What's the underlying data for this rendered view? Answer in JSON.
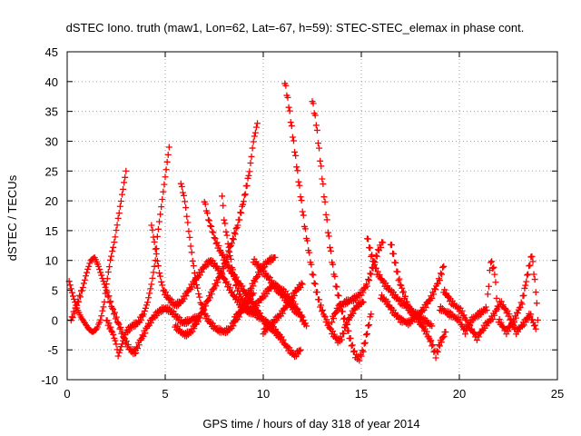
{
  "chart_data": {
    "type": "scatter",
    "title": "dSTEC Iono. truth (maw1, Lon=62, Lat=-67, h=59): STEC-STEC_elemax in phase cont.",
    "xlabel": "GPS time / hours of day 318 of year 2014",
    "ylabel": "dSTEC  / TECUs",
    "xlim": [
      0,
      25
    ],
    "ylim": [
      -10,
      45
    ],
    "xticks": [
      0,
      5,
      10,
      15,
      20,
      25
    ],
    "yticks": [
      -10,
      -5,
      0,
      5,
      10,
      15,
      20,
      25,
      30,
      35,
      40,
      45
    ],
    "grid": true,
    "marker": "plus",
    "color": "#ff0000",
    "series": [
      {
        "points": [
          [
            0.1,
            6.5
          ],
          [
            0.3,
            4.0
          ],
          [
            0.5,
            2.0
          ],
          [
            0.7,
            0.5
          ],
          [
            0.9,
            -0.5
          ],
          [
            1.1,
            -1.5
          ],
          [
            1.3,
            -2.0
          ],
          [
            1.5,
            -1.5
          ],
          [
            1.7,
            0.0
          ],
          [
            1.9,
            3.0
          ],
          [
            2.0,
            6.0
          ],
          [
            2.2,
            10.0
          ],
          [
            2.4,
            13.0
          ],
          [
            2.6,
            17.0
          ],
          [
            2.8,
            21.0
          ],
          [
            3.0,
            25.0
          ]
        ]
      },
      {
        "points": [
          [
            0.2,
            0.0
          ],
          [
            0.5,
            2.5
          ],
          [
            0.8,
            5.5
          ],
          [
            1.0,
            8.0
          ],
          [
            1.2,
            10.0
          ],
          [
            1.4,
            10.5
          ],
          [
            1.6,
            9.0
          ],
          [
            1.8,
            7.0
          ],
          [
            2.0,
            5.0
          ],
          [
            2.3,
            2.0
          ],
          [
            2.6,
            -0.5
          ],
          [
            2.9,
            -3.0
          ],
          [
            3.2,
            -5.0
          ],
          [
            3.5,
            -5.5
          ]
        ]
      },
      {
        "points": [
          [
            2.0,
            0.0
          ],
          [
            2.3,
            -2.0
          ],
          [
            2.5,
            -4.0
          ],
          [
            2.6,
            -6.0
          ],
          [
            2.8,
            -4.0
          ],
          [
            3.0,
            -2.0
          ],
          [
            3.3,
            -1.0
          ],
          [
            3.6,
            -0.5
          ],
          [
            3.9,
            1.0
          ],
          [
            4.1,
            3.0
          ],
          [
            4.3,
            6.0
          ],
          [
            4.5,
            10.0
          ],
          [
            4.6,
            14.0
          ],
          [
            4.8,
            19.0
          ],
          [
            5.0,
            24.0
          ],
          [
            5.2,
            29.0
          ]
        ]
      },
      {
        "points": [
          [
            3.5,
            -5.0
          ],
          [
            3.8,
            -3.0
          ],
          [
            4.1,
            -1.0
          ],
          [
            4.4,
            0.5
          ],
          [
            4.7,
            1.5
          ],
          [
            5.0,
            2.0
          ],
          [
            5.3,
            1.5
          ],
          [
            5.6,
            0.5
          ],
          [
            5.9,
            -0.5
          ],
          [
            6.3,
            0.0
          ],
          [
            6.7,
            0.5
          ]
        ]
      },
      {
        "points": [
          [
            4.3,
            16.0
          ],
          [
            4.5,
            12.0
          ],
          [
            4.7,
            8.0
          ],
          [
            4.9,
            5.0
          ],
          [
            5.2,
            3.5
          ],
          [
            5.5,
            2.5
          ],
          [
            5.8,
            3.0
          ],
          [
            6.2,
            5.0
          ],
          [
            6.6,
            7.0
          ],
          [
            7.0,
            9.0
          ],
          [
            7.3,
            10.0
          ],
          [
            7.6,
            9.0
          ],
          [
            8.0,
            7.0
          ],
          [
            8.5,
            4.0
          ],
          [
            9.0,
            2.0
          ],
          [
            9.5,
            1.0
          ]
        ]
      },
      {
        "points": [
          [
            5.8,
            23.0
          ],
          [
            6.0,
            20.0
          ],
          [
            6.2,
            15.0
          ],
          [
            6.4,
            10.0
          ],
          [
            6.6,
            6.0
          ],
          [
            6.8,
            3.0
          ],
          [
            7.0,
            1.0
          ],
          [
            7.3,
            -0.5
          ],
          [
            7.6,
            -1.5
          ],
          [
            8.0,
            -2.0
          ],
          [
            8.3,
            -1.5
          ],
          [
            8.6,
            0.0
          ],
          [
            8.9,
            1.5
          ],
          [
            9.2,
            3.0
          ],
          [
            9.5,
            4.5
          ]
        ]
      },
      {
        "points": [
          [
            5.5,
            -1.0
          ],
          [
            5.8,
            -2.0
          ],
          [
            6.0,
            -2.5
          ],
          [
            6.3,
            -2.0
          ],
          [
            6.6,
            -0.5
          ],
          [
            6.9,
            1.5
          ],
          [
            7.2,
            3.5
          ],
          [
            7.5,
            5.5
          ],
          [
            7.8,
            7.5
          ],
          [
            8.1,
            10.0
          ],
          [
            8.4,
            13.0
          ],
          [
            8.7,
            16.0
          ],
          [
            9.0,
            20.0
          ],
          [
            9.3,
            25.0
          ],
          [
            9.5,
            30.0
          ],
          [
            9.7,
            33.0
          ]
        ]
      },
      {
        "points": [
          [
            7.0,
            20.0
          ],
          [
            7.2,
            17.0
          ],
          [
            7.4,
            15.0
          ],
          [
            7.6,
            13.0
          ],
          [
            7.9,
            11.0
          ],
          [
            8.2,
            9.0
          ],
          [
            8.5,
            7.5
          ],
          [
            8.8,
            6.0
          ],
          [
            9.1,
            4.5
          ],
          [
            9.4,
            3.0
          ],
          [
            9.7,
            1.5
          ],
          [
            10.0,
            0.0
          ],
          [
            10.3,
            -1.0
          ],
          [
            10.6,
            -2.0
          ],
          [
            10.9,
            -3.0
          ]
        ]
      },
      {
        "points": [
          [
            7.9,
            21.0
          ],
          [
            8.0,
            17.0
          ],
          [
            8.2,
            13.0
          ],
          [
            8.4,
            9.0
          ],
          [
            8.6,
            6.0
          ],
          [
            8.9,
            3.5
          ],
          [
            9.2,
            2.0
          ],
          [
            9.6,
            1.0
          ],
          [
            10.0,
            0.0
          ],
          [
            10.4,
            -1.0
          ],
          [
            10.8,
            -2.5
          ],
          [
            11.2,
            -4.5
          ],
          [
            11.6,
            -6.0
          ],
          [
            11.9,
            -5.0
          ]
        ]
      },
      {
        "points": [
          [
            8.5,
            0.0
          ],
          [
            8.8,
            1.5
          ],
          [
            9.1,
            3.5
          ],
          [
            9.4,
            5.5
          ],
          [
            9.7,
            7.5
          ],
          [
            10.0,
            9.0
          ],
          [
            10.3,
            10.0
          ],
          [
            10.6,
            10.5
          ]
        ]
      },
      {
        "points": [
          [
            9.5,
            2.0
          ],
          [
            10.0,
            4.0
          ],
          [
            10.5,
            6.0
          ],
          [
            11.0,
            5.0
          ],
          [
            11.5,
            3.0
          ],
          [
            11.8,
            1.5
          ],
          [
            12.0,
            0.0
          ],
          [
            12.2,
            -1.0
          ]
        ]
      },
      {
        "points": [
          [
            9.5,
            10.0
          ],
          [
            9.8,
            9.0
          ],
          [
            10.0,
            8.0
          ],
          [
            10.3,
            7.0
          ],
          [
            10.6,
            5.5
          ],
          [
            11.0,
            4.0
          ],
          [
            11.5,
            2.0
          ],
          [
            12.0,
            0.5
          ]
        ]
      },
      {
        "points": [
          [
            10.0,
            -2.0
          ],
          [
            10.3,
            -1.0
          ],
          [
            10.6,
            0.0
          ],
          [
            10.9,
            1.0
          ],
          [
            11.2,
            2.5
          ],
          [
            11.5,
            4.0
          ],
          [
            11.8,
            5.5
          ],
          [
            12.0,
            6.0
          ]
        ]
      },
      {
        "points": [
          [
            11.1,
            40.0
          ],
          [
            11.3,
            36.0
          ],
          [
            11.5,
            31.0
          ],
          [
            11.7,
            26.0
          ],
          [
            11.9,
            21.0
          ],
          [
            12.1,
            16.0
          ],
          [
            12.3,
            12.0
          ],
          [
            12.5,
            8.0
          ],
          [
            12.7,
            5.0
          ],
          [
            12.9,
            2.5
          ],
          [
            13.2,
            0.0
          ],
          [
            13.5,
            -2.0
          ],
          [
            13.8,
            -3.5
          ],
          [
            14.0,
            -3.0
          ],
          [
            14.2,
            -1.0
          ],
          [
            14.5,
            1.0
          ],
          [
            14.8,
            2.5
          ],
          [
            15.1,
            3.0
          ]
        ]
      },
      {
        "points": [
          [
            12.5,
            37.0
          ],
          [
            12.7,
            33.0
          ],
          [
            12.9,
            27.0
          ],
          [
            13.1,
            21.0
          ],
          [
            13.3,
            15.0
          ],
          [
            13.5,
            10.0
          ],
          [
            13.7,
            6.0
          ],
          [
            13.9,
            3.0
          ],
          [
            14.1,
            0.5
          ],
          [
            14.3,
            -1.5
          ],
          [
            14.5,
            -4.0
          ],
          [
            14.7,
            -6.0
          ],
          [
            14.9,
            -6.5
          ],
          [
            15.1,
            -5.0
          ],
          [
            15.3,
            -2.0
          ],
          [
            15.5,
            1.0
          ]
        ]
      },
      {
        "points": [
          [
            13.5,
            0.0
          ],
          [
            13.8,
            2.0
          ],
          [
            14.2,
            3.0
          ],
          [
            14.6,
            3.5
          ],
          [
            15.0,
            4.5
          ],
          [
            15.3,
            6.0
          ],
          [
            15.5,
            8.0
          ],
          [
            15.7,
            10.0
          ],
          [
            15.9,
            12.0
          ],
          [
            16.1,
            13.0
          ]
        ]
      },
      {
        "points": [
          [
            15.3,
            14.0
          ],
          [
            15.5,
            11.0
          ],
          [
            15.8,
            8.0
          ],
          [
            16.2,
            6.0
          ],
          [
            16.6,
            4.5
          ],
          [
            17.0,
            3.0
          ],
          [
            17.4,
            2.0
          ],
          [
            17.8,
            1.0
          ],
          [
            18.2,
            0.0
          ],
          [
            18.6,
            -1.0
          ]
        ]
      },
      {
        "points": [
          [
            16.0,
            4.0
          ],
          [
            16.3,
            3.0
          ],
          [
            16.6,
            1.5
          ],
          [
            17.0,
            0.0
          ],
          [
            17.4,
            -0.5
          ],
          [
            17.8,
            0.5
          ],
          [
            18.2,
            2.0
          ],
          [
            18.6,
            4.0
          ],
          [
            19.0,
            7.0
          ],
          [
            19.2,
            9.0
          ]
        ]
      },
      {
        "points": [
          [
            16.5,
            13.0
          ],
          [
            16.7,
            10.0
          ],
          [
            16.9,
            7.0
          ],
          [
            17.2,
            4.0
          ],
          [
            17.5,
            1.5
          ],
          [
            17.9,
            0.0
          ],
          [
            18.3,
            -2.0
          ],
          [
            18.6,
            -4.0
          ],
          [
            18.8,
            -6.0
          ],
          [
            19.0,
            -4.0
          ],
          [
            19.3,
            -2.0
          ]
        ]
      },
      {
        "points": [
          [
            19.0,
            2.0
          ],
          [
            19.5,
            1.0
          ],
          [
            20.0,
            0.0
          ],
          [
            20.3,
            -2.0
          ],
          [
            20.6,
            0.0
          ],
          [
            21.0,
            1.0
          ],
          [
            21.4,
            2.0
          ],
          [
            21.6,
            10.0
          ],
          [
            21.8,
            8.0
          ],
          [
            22.0,
            0.0
          ],
          [
            22.4,
            -2.0
          ],
          [
            22.8,
            0.0
          ],
          [
            23.2,
            3.0
          ],
          [
            23.5,
            8.0
          ],
          [
            23.7,
            11.0
          ],
          [
            23.9,
            5.0
          ],
          [
            24.0,
            0.0
          ]
        ]
      },
      {
        "points": [
          [
            19.2,
            5.0
          ],
          [
            19.6,
            3.0
          ],
          [
            20.1,
            1.5
          ],
          [
            20.5,
            -1.0
          ],
          [
            20.9,
            -3.0
          ],
          [
            21.3,
            -1.0
          ],
          [
            21.7,
            0.5
          ],
          [
            22.1,
            3.0
          ],
          [
            22.5,
            1.0
          ],
          [
            22.9,
            -2.0
          ],
          [
            23.3,
            -0.5
          ],
          [
            23.6,
            1.0
          ],
          [
            23.9,
            -1.5
          ]
        ]
      }
    ]
  }
}
